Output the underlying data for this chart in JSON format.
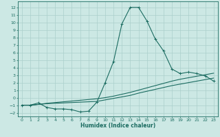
{
  "xlabel": "Humidex (Indice chaleur)",
  "xlim": [
    -0.5,
    23.5
  ],
  "ylim": [
    -2.5,
    12.8
  ],
  "yticks": [
    -2,
    -1,
    0,
    1,
    2,
    3,
    4,
    5,
    6,
    7,
    8,
    9,
    10,
    11,
    12
  ],
  "xticks": [
    0,
    1,
    2,
    3,
    4,
    5,
    6,
    7,
    8,
    9,
    10,
    11,
    12,
    13,
    14,
    15,
    16,
    17,
    18,
    19,
    20,
    21,
    22,
    23
  ],
  "bg_color": "#cce8e4",
  "grid_color": "#aacfcb",
  "line_color": "#1a6b60",
  "curve1_x": [
    0,
    1,
    2,
    3,
    4,
    5,
    6,
    7,
    8,
    9,
    10,
    11,
    12,
    13,
    14,
    15,
    16,
    17,
    18,
    19,
    20,
    21,
    22,
    23
  ],
  "curve1_y": [
    -1.0,
    -1.0,
    -0.7,
    -1.3,
    -1.5,
    -1.5,
    -1.6,
    -1.9,
    -1.8,
    -0.6,
    2.0,
    4.8,
    9.8,
    12.0,
    12.0,
    10.2,
    7.8,
    6.2,
    3.8,
    3.2,
    3.4,
    3.2,
    2.9,
    2.2
  ],
  "curve2_x": [
    0,
    1,
    2,
    3,
    4,
    5,
    6,
    7,
    8,
    9,
    10,
    11,
    12,
    13,
    14,
    15,
    16,
    17,
    18,
    19,
    20,
    21,
    22,
    23
  ],
  "curve2_y": [
    -1.0,
    -1.0,
    -0.9,
    -0.8,
    -0.75,
    -0.7,
    -0.65,
    -0.6,
    -0.55,
    -0.5,
    -0.3,
    -0.1,
    0.1,
    0.3,
    0.6,
    0.85,
    1.1,
    1.35,
    1.6,
    1.8,
    2.0,
    2.2,
    2.4,
    2.6
  ],
  "curve3_x": [
    0,
    1,
    2,
    3,
    4,
    5,
    6,
    7,
    8,
    9,
    10,
    11,
    12,
    13,
    14,
    15,
    16,
    17,
    18,
    19,
    20,
    21,
    22,
    23
  ],
  "curve3_y": [
    -1.0,
    -1.0,
    -0.9,
    -0.75,
    -0.65,
    -0.55,
    -0.45,
    -0.35,
    -0.25,
    -0.15,
    0.0,
    0.2,
    0.45,
    0.7,
    1.0,
    1.3,
    1.6,
    1.9,
    2.2,
    2.45,
    2.65,
    2.85,
    3.05,
    3.25
  ]
}
